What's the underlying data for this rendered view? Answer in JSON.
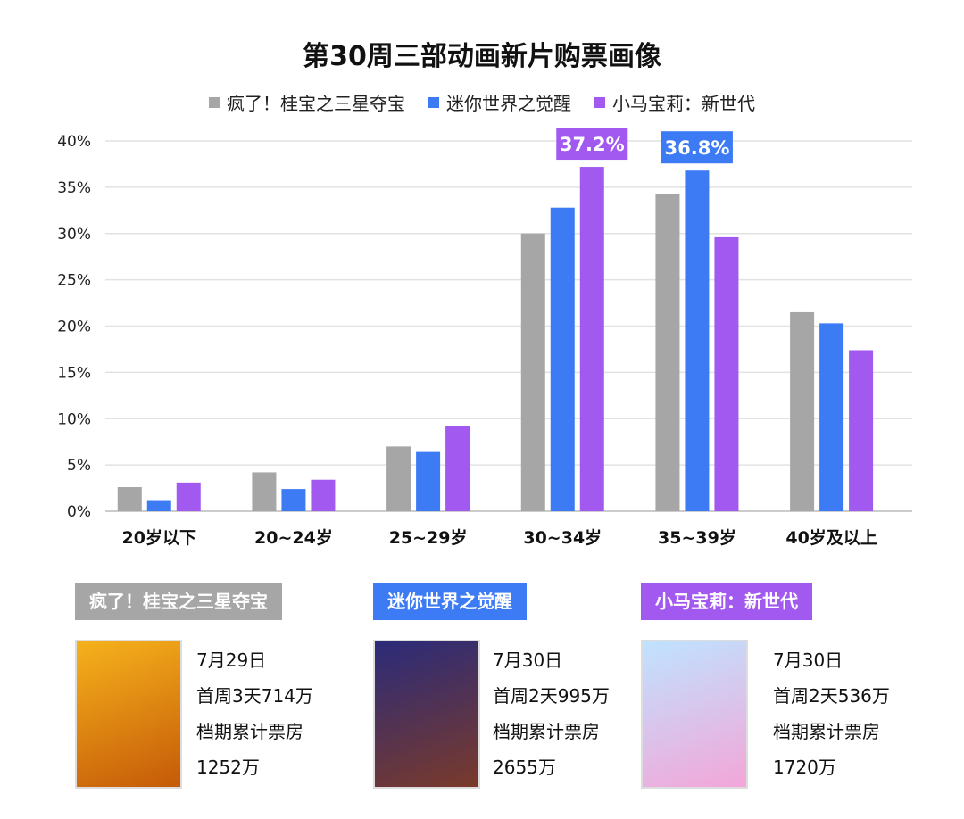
{
  "chart_data": {
    "type": "bar",
    "title": "第30周三部动画新片购票画像",
    "categories": [
      "20岁以下",
      "20~24岁",
      "25~29岁",
      "30~34岁",
      "35~39岁",
      "40岁及以上"
    ],
    "ylim": [
      0,
      40
    ],
    "yticks": [
      "0%",
      "5%",
      "10%",
      "15%",
      "20%",
      "25%",
      "30%",
      "35%",
      "40%"
    ],
    "grid": true,
    "legend_position": "top",
    "series": [
      {
        "name": "疯了！桂宝之三星夺宝",
        "color": "#a6a6a6",
        "values": [
          2.6,
          4.2,
          7.0,
          30.0,
          34.3,
          21.5
        ]
      },
      {
        "name": "迷你世界之觉醒",
        "color": "#3d7bf5",
        "values": [
          1.2,
          2.4,
          6.4,
          32.8,
          36.8,
          20.3
        ]
      },
      {
        "name": "小马宝莉：新世代",
        "color": "#a259f0",
        "values": [
          3.1,
          3.4,
          9.2,
          37.2,
          29.6,
          17.4
        ]
      }
    ],
    "annotations": [
      {
        "series": 2,
        "category": 3,
        "text": "37.2%"
      },
      {
        "series": 1,
        "category": 4,
        "text": "36.8%"
      }
    ]
  },
  "films": [
    {
      "name": "疯了！桂宝之三星夺宝",
      "color": "#a6a6a6",
      "date": "7月29日",
      "first": "首周3天714万",
      "cum_label": "档期累计票房",
      "cum": "1252万",
      "poster": [
        "#f6b21c",
        "#c55a08"
      ]
    },
    {
      "name": "迷你世界之觉醒",
      "color": "#3d7bf5",
      "date": "7月30日",
      "first": "首周2天995万",
      "cum_label": "档期累计票房",
      "cum": "2655万",
      "poster": [
        "#2b2b7a",
        "#7a3a2a"
      ]
    },
    {
      "name": "小马宝莉：新世代",
      "color": "#a259f0",
      "date": "7月30日",
      "first": "首周2天536万",
      "cum_label": "档期累计票房",
      "cum": "1720万",
      "poster": [
        "#bfe3ff",
        "#f3a6d8"
      ]
    }
  ]
}
